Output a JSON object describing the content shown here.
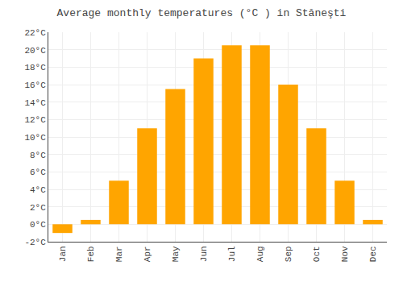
{
  "chart_data": {
    "type": "bar",
    "title": "Average monthly temperatures (°C ) in Stăneşti",
    "categories": [
      "Jan",
      "Feb",
      "Mar",
      "Apr",
      "May",
      "Jun",
      "Jul",
      "Aug",
      "Sep",
      "Oct",
      "Nov",
      "Dec"
    ],
    "values": [
      -1,
      0.5,
      5,
      11,
      15.5,
      19,
      20.5,
      20.5,
      16,
      11,
      5,
      0.5
    ],
    "color": "#FFA500",
    "ylim": [
      -2,
      22
    ],
    "yticks": [
      {
        "value": -2,
        "label": "-2°C"
      },
      {
        "value": 0,
        "label": "0°C"
      },
      {
        "value": 2,
        "label": "2°C"
      },
      {
        "value": 4,
        "label": "4°C"
      },
      {
        "value": 6,
        "label": "6°C"
      },
      {
        "value": 8,
        "label": "8°C"
      },
      {
        "value": 10,
        "label": "10°C"
      },
      {
        "value": 12,
        "label": "12°C"
      },
      {
        "value": 14,
        "label": "14°C"
      },
      {
        "value": 16,
        "label": "16°C"
      },
      {
        "value": 18,
        "label": "18°C"
      },
      {
        "value": 20,
        "label": "20°C"
      },
      {
        "value": 22,
        "label": "22°C"
      }
    ],
    "grid": true
  }
}
